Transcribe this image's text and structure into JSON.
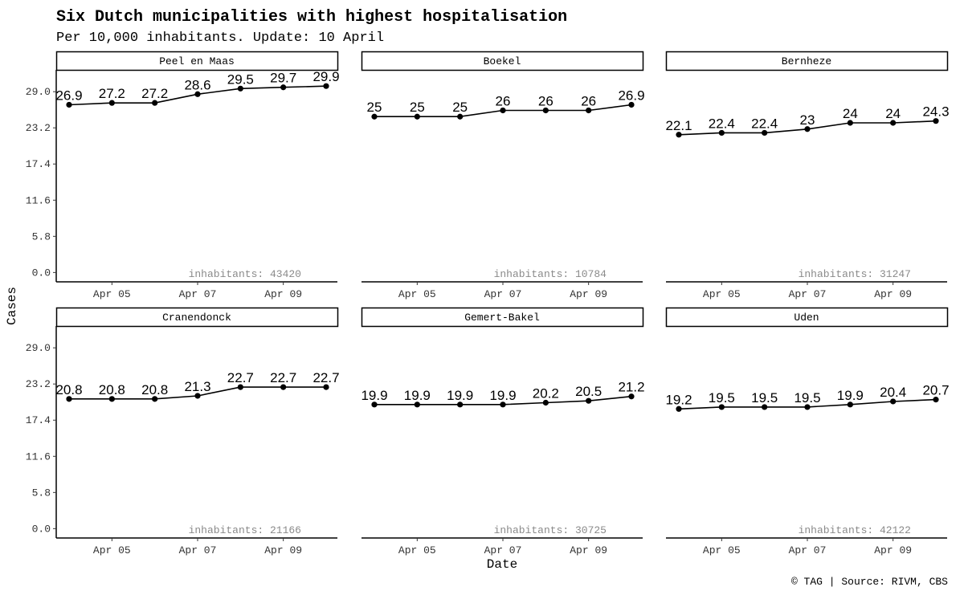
{
  "chart_data": {
    "type": "line",
    "title": "Six Dutch municipalities with highest hospitalisation",
    "subtitle": "Per 10,000 inhabitants. Update: 10 April",
    "xlabel": "Date",
    "ylabel": "Cases",
    "caption": "© TAG | Source: RIVM, CBS",
    "x": [
      "Apr 04",
      "Apr 05",
      "Apr 06",
      "Apr 07",
      "Apr 08",
      "Apr 09",
      "Apr 10"
    ],
    "x_ticks": [
      "Apr 05",
      "Apr 07",
      "Apr 09"
    ],
    "y_ticks": [
      "0.0",
      "5.8",
      "11.6",
      "17.4",
      "23.2",
      "29.0"
    ],
    "ylim": [
      -1.5,
      32.5
    ],
    "grid": false,
    "inhabitants_prefix": "inhabitants: ",
    "facets": [
      {
        "name": "Peel en Maas",
        "inhabitants": "43420",
        "values": [
          26.9,
          27.2,
          27.2,
          28.6,
          29.5,
          29.7,
          29.9
        ],
        "labels": [
          "26.9",
          "27.2",
          "27.2",
          "28.6",
          "29.5",
          "29.7",
          "29.9"
        ]
      },
      {
        "name": "Boekel",
        "inhabitants": "10784",
        "values": [
          25,
          25,
          25,
          26,
          26,
          26,
          26.9
        ],
        "labels": [
          "25",
          "25",
          "25",
          "26",
          "26",
          "26",
          "26.9"
        ]
      },
      {
        "name": "Bernheze",
        "inhabitants": "31247",
        "values": [
          22.1,
          22.4,
          22.4,
          23,
          24,
          24,
          24.3
        ],
        "labels": [
          "22.1",
          "22.4",
          "22.4",
          "23",
          "24",
          "24",
          "24.3"
        ]
      },
      {
        "name": "Cranendonck",
        "inhabitants": "21166",
        "values": [
          20.8,
          20.8,
          20.8,
          21.3,
          22.7,
          22.7,
          22.7
        ],
        "labels": [
          "20.8",
          "20.8",
          "20.8",
          "21.3",
          "22.7",
          "22.7",
          "22.7"
        ]
      },
      {
        "name": "Gemert-Bakel",
        "inhabitants": "30725",
        "values": [
          19.9,
          19.9,
          19.9,
          19.9,
          20.2,
          20.5,
          21.2
        ],
        "labels": [
          "19.9",
          "19.9",
          "19.9",
          "19.9",
          "20.2",
          "20.5",
          "21.2"
        ]
      },
      {
        "name": "Uden",
        "inhabitants": "42122",
        "values": [
          19.2,
          19.5,
          19.5,
          19.5,
          19.9,
          20.4,
          20.7
        ],
        "labels": [
          "19.2",
          "19.5",
          "19.5",
          "19.5",
          "19.9",
          "20.4",
          "20.7"
        ]
      }
    ]
  }
}
